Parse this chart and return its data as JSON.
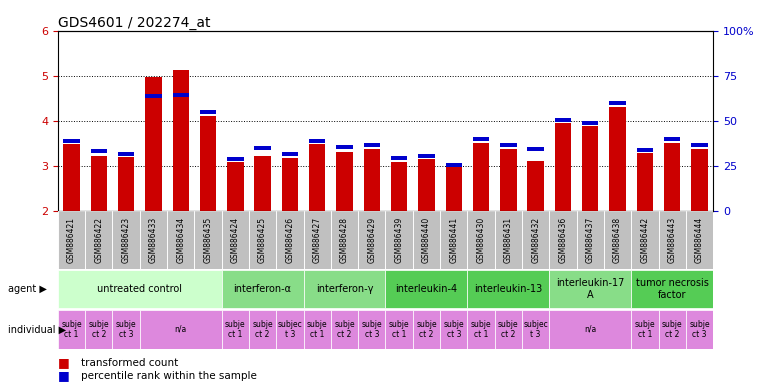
{
  "title": "GDS4601 / 202274_at",
  "samples": [
    "GSM886421",
    "GSM886422",
    "GSM886423",
    "GSM886433",
    "GSM886434",
    "GSM886435",
    "GSM886424",
    "GSM886425",
    "GSM886426",
    "GSM886427",
    "GSM886428",
    "GSM886429",
    "GSM886439",
    "GSM886440",
    "GSM886441",
    "GSM886430",
    "GSM886431",
    "GSM886432",
    "GSM886436",
    "GSM886437",
    "GSM886438",
    "GSM886442",
    "GSM886443",
    "GSM886444"
  ],
  "transformed_count": [
    3.48,
    3.22,
    3.2,
    4.98,
    5.12,
    4.12,
    3.1,
    3.22,
    3.18,
    3.48,
    3.32,
    3.38,
    3.1,
    3.15,
    2.97,
    3.52,
    3.38,
    3.12,
    3.95,
    3.88,
    4.32,
    3.28,
    3.52,
    3.38
  ],
  "percentile_rank": [
    3.52,
    3.28,
    3.22,
    4.5,
    4.52,
    4.15,
    3.12,
    3.35,
    3.22,
    3.52,
    3.38,
    3.42,
    3.14,
    3.18,
    2.98,
    3.56,
    3.42,
    3.34,
    3.98,
    3.92,
    4.35,
    3.32,
    3.56,
    3.42
  ],
  "ylim": [
    2,
    6
  ],
  "yticks_left": [
    2,
    3,
    4,
    5,
    6
  ],
  "yticks_right": [
    0,
    25,
    50,
    75,
    100
  ],
  "bar_color": "#cc0000",
  "percentile_color": "#0000cc",
  "ylabel_left_color": "#cc0000",
  "ylabel_right_color": "#0000cc",
  "agent_groups": [
    {
      "label": "untreated control",
      "start": 0,
      "end": 5,
      "color": "#ccffcc"
    },
    {
      "label": "interferon-α",
      "start": 6,
      "end": 8,
      "color": "#88dd88"
    },
    {
      "label": "interferon-γ",
      "start": 9,
      "end": 11,
      "color": "#88dd88"
    },
    {
      "label": "interleukin-4",
      "start": 12,
      "end": 14,
      "color": "#55cc55"
    },
    {
      "label": "interleukin-13",
      "start": 15,
      "end": 17,
      "color": "#55cc55"
    },
    {
      "label": "interleukin-17\nA",
      "start": 18,
      "end": 20,
      "color": "#88dd88"
    },
    {
      "label": "tumor necrosis\nfactor",
      "start": 21,
      "end": 23,
      "color": "#55cc55"
    }
  ],
  "individual_groups": [
    {
      "label": "subje\nct 1",
      "start": 0,
      "end": 0,
      "color": "#dd88dd"
    },
    {
      "label": "subje\nct 2",
      "start": 1,
      "end": 1,
      "color": "#dd88dd"
    },
    {
      "label": "subje\nct 3",
      "start": 2,
      "end": 2,
      "color": "#dd88dd"
    },
    {
      "label": "n/a",
      "start": 3,
      "end": 5,
      "color": "#dd88dd"
    },
    {
      "label": "subje\nct 1",
      "start": 6,
      "end": 6,
      "color": "#dd88dd"
    },
    {
      "label": "subje\nct 2",
      "start": 7,
      "end": 7,
      "color": "#dd88dd"
    },
    {
      "label": "subjec\nt 3",
      "start": 8,
      "end": 8,
      "color": "#dd88dd"
    },
    {
      "label": "subje\nct 1",
      "start": 9,
      "end": 9,
      "color": "#dd88dd"
    },
    {
      "label": "subje\nct 2",
      "start": 10,
      "end": 10,
      "color": "#dd88dd"
    },
    {
      "label": "subje\nct 3",
      "start": 11,
      "end": 11,
      "color": "#dd88dd"
    },
    {
      "label": "subje\nct 1",
      "start": 12,
      "end": 12,
      "color": "#dd88dd"
    },
    {
      "label": "subje\nct 2",
      "start": 13,
      "end": 13,
      "color": "#dd88dd"
    },
    {
      "label": "subje\nct 3",
      "start": 14,
      "end": 14,
      "color": "#dd88dd"
    },
    {
      "label": "subje\nct 1",
      "start": 15,
      "end": 15,
      "color": "#dd88dd"
    },
    {
      "label": "subje\nct 2",
      "start": 16,
      "end": 16,
      "color": "#dd88dd"
    },
    {
      "label": "subjec\nt 3",
      "start": 17,
      "end": 17,
      "color": "#dd88dd"
    },
    {
      "label": "n/a",
      "start": 18,
      "end": 20,
      "color": "#dd88dd"
    },
    {
      "label": "subje\nct 1",
      "start": 21,
      "end": 21,
      "color": "#dd88dd"
    },
    {
      "label": "subje\nct 2",
      "start": 22,
      "end": 22,
      "color": "#dd88dd"
    },
    {
      "label": "subje\nct 3",
      "start": 23,
      "end": 23,
      "color": "#dd88dd"
    }
  ],
  "legend_items": [
    {
      "label": "transformed count",
      "color": "#cc0000"
    },
    {
      "label": "percentile rank within the sample",
      "color": "#0000cc"
    }
  ],
  "bar_width": 0.6,
  "percentile_bar_height": 0.09,
  "sample_bg_color": "#c0c0c0",
  "xticklabel_fontsize": 5.5,
  "agent_label_fontsize": 7,
  "individual_label_fontsize": 5.5,
  "title_fontsize": 10
}
